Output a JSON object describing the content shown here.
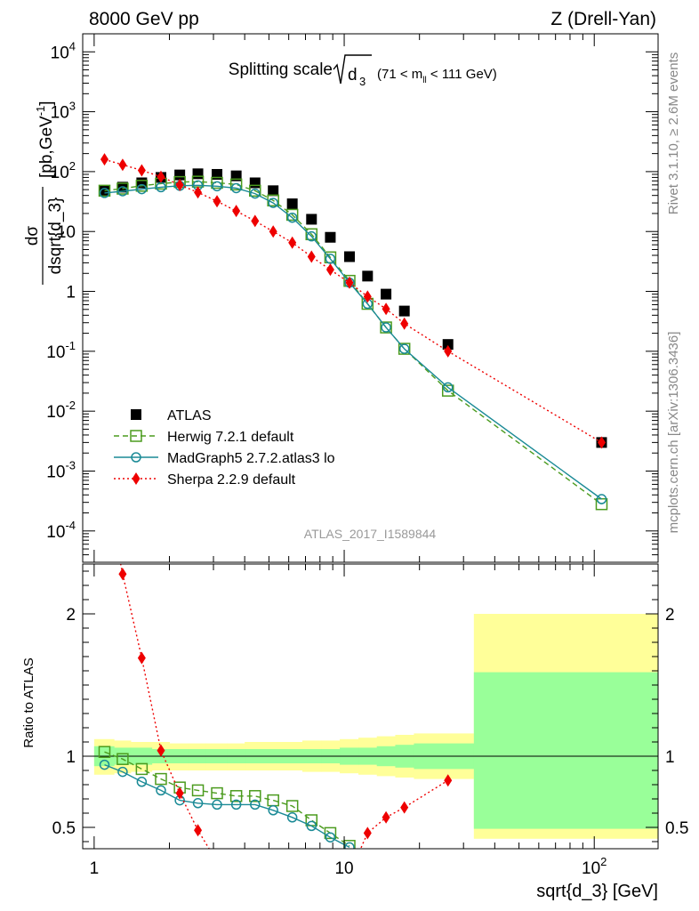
{
  "header": {
    "left": "8000 GeV pp",
    "right": "Z (Drell-Yan)"
  },
  "side_labels": {
    "rivet": "Rivet 3.1.10, ≥ 2.6M events",
    "mcplots": "mcplots.cern.ch [arXiv:1306.3436]"
  },
  "watermark": "ATLAS_2017_I1589844",
  "chart_data": [
    {
      "type": "scatter",
      "panel": "main",
      "title": "Splitting scale √d₃ (71 < m_ll < 111 GeV)",
      "title_main": "Splitting scale",
      "title_var": "d",
      "title_sub": "3",
      "title_cut": "(71 < m",
      "title_cut_sub": "ll",
      "title_cut_end": " < 111 GeV)",
      "ylabel": "dσ/dsqrt{d_3} [pb,GeV⁻¹]",
      "ylabel_num": "dσ",
      "ylabel_den": "dsqrt{d_3}",
      "ylabel_unit": "[pb,GeV",
      "ylabel_unit_sup": "-1",
      "ylabel_unit_end": "]",
      "xscale": "log",
      "yscale": "log",
      "xlim": [
        0.9,
        180
      ],
      "ylim": [
        3e-05,
        20000
      ],
      "yticks": [
        {
          "v": 0.0001,
          "base": "10",
          "exp": "-4"
        },
        {
          "v": 0.001,
          "base": "10",
          "exp": "-3"
        },
        {
          "v": 0.01,
          "base": "10",
          "exp": "-2"
        },
        {
          "v": 0.1,
          "base": "10",
          "exp": "-1"
        },
        {
          "v": 1,
          "base": "1",
          "exp": ""
        },
        {
          "v": 10,
          "base": "10",
          "exp": ""
        },
        {
          "v": 100,
          "base": "10",
          "exp": "2"
        },
        {
          "v": 1000,
          "base": "10",
          "exp": "3"
        },
        {
          "v": 10000,
          "base": "10",
          "exp": "4"
        }
      ],
      "legend_position": "lower-left",
      "series": [
        {
          "name": "ATLAS",
          "marker": "square-filled",
          "color": "#000000",
          "x": [
            1.1,
            1.3,
            1.55,
            1.85,
            2.2,
            2.6,
            3.1,
            3.7,
            4.4,
            5.2,
            6.2,
            7.4,
            8.8,
            10.5,
            12.4,
            14.7,
            17.4,
            26.0,
            107.0
          ],
          "y": [
            48,
            55,
            65,
            80,
            88,
            92,
            90,
            85,
            65,
            48,
            29,
            16,
            8,
            3.8,
            1.8,
            0.9,
            0.47,
            0.13,
            0.003
          ]
        },
        {
          "name": "Herwig 7.2.1 default",
          "marker": "square-open",
          "line": "dashed",
          "color": "#4b9b1e",
          "x": [
            1.1,
            1.3,
            1.55,
            1.85,
            2.2,
            2.6,
            3.1,
            3.7,
            4.4,
            5.2,
            6.2,
            7.4,
            8.8,
            10.5,
            12.4,
            14.7,
            17.4,
            26.0,
            107.0
          ],
          "y": [
            48,
            52,
            58,
            63,
            67,
            68,
            65,
            61,
            48,
            33,
            19,
            9,
            3.7,
            1.5,
            0.62,
            0.25,
            0.11,
            0.022,
            0.00028
          ]
        },
        {
          "name": "MadGraph5 2.7.2.atlas3 lo",
          "marker": "circle-open",
          "line": "solid",
          "color": "#1a8a96",
          "x": [
            1.1,
            1.3,
            1.55,
            1.85,
            2.2,
            2.6,
            3.1,
            3.7,
            4.4,
            5.2,
            6.2,
            7.4,
            8.8,
            10.5,
            12.4,
            14.7,
            17.4,
            26.0,
            107.0
          ],
          "y": [
            44,
            47,
            51,
            55,
            58,
            59,
            57,
            53,
            43,
            30,
            17,
            8.3,
            3.5,
            1.4,
            0.62,
            0.25,
            0.11,
            0.025,
            0.00034
          ]
        },
        {
          "name": "Sherpa 2.2.9 default",
          "marker": "diamond-filled",
          "line": "dotted",
          "color": "#ee0000",
          "x": [
            1.1,
            1.3,
            1.55,
            1.85,
            2.2,
            2.6,
            3.1,
            3.7,
            4.4,
            5.2,
            6.2,
            7.4,
            8.8,
            10.5,
            12.4,
            14.7,
            17.4,
            26.0,
            107.0
          ],
          "y": [
            160,
            130,
            105,
            82,
            60,
            45,
            32,
            22,
            15,
            10,
            6.5,
            3.8,
            2.3,
            1.4,
            0.82,
            0.51,
            0.29,
            0.1,
            0.003
          ]
        }
      ]
    },
    {
      "type": "scatter",
      "panel": "ratio",
      "xlabel": "sqrt{d_3} [GeV]",
      "ylabel": "Ratio to ATLAS",
      "xscale": "log",
      "xlim": [
        0.9,
        180
      ],
      "ylim": [
        0.35,
        2.35
      ],
      "xticks": [
        {
          "v": 1,
          "base": "1",
          "exp": ""
        },
        {
          "v": 10,
          "base": "10",
          "exp": ""
        },
        {
          "v": 100,
          "base": "10",
          "exp": "2"
        }
      ],
      "yticks": [
        {
          "v": 0.5,
          "label": "0.5"
        },
        {
          "v": 1,
          "label": "1"
        },
        {
          "v": 2,
          "label": "2"
        }
      ],
      "bands": {
        "edges": [
          1.0,
          1.2,
          1.4,
          1.7,
          2.0,
          2.4,
          2.8,
          3.4,
          4.0,
          4.8,
          5.7,
          6.8,
          8.1,
          9.6,
          11.4,
          13.5,
          16.0,
          19.0,
          33.0,
          180.0
        ],
        "inner_lo": [
          0.93,
          0.94,
          0.94,
          0.95,
          0.95,
          0.95,
          0.95,
          0.95,
          0.95,
          0.95,
          0.95,
          0.95,
          0.95,
          0.94,
          0.94,
          0.93,
          0.92,
          0.91,
          0.49
        ],
        "inner_hi": [
          1.07,
          1.06,
          1.06,
          1.05,
          1.05,
          1.05,
          1.05,
          1.05,
          1.05,
          1.05,
          1.05,
          1.05,
          1.05,
          1.06,
          1.06,
          1.07,
          1.08,
          1.09,
          1.59
        ],
        "outer_lo": [
          0.87,
          0.88,
          0.89,
          0.9,
          0.9,
          0.9,
          0.9,
          0.9,
          0.9,
          0.9,
          0.9,
          0.89,
          0.89,
          0.88,
          0.87,
          0.86,
          0.85,
          0.84,
          0.42
        ],
        "outer_hi": [
          1.12,
          1.11,
          1.1,
          1.1,
          1.09,
          1.09,
          1.09,
          1.09,
          1.1,
          1.1,
          1.1,
          1.11,
          1.11,
          1.12,
          1.13,
          1.14,
          1.15,
          1.16,
          2.0
        ],
        "inner_color": "#99ff99",
        "outer_color": "#ffff99"
      },
      "series": [
        {
          "name": "Herwig 7.2.1 default",
          "color": "#4b9b1e",
          "marker": "square-open",
          "line": "dashed",
          "x": [
            1.1,
            1.3,
            1.55,
            1.85,
            2.2,
            2.6,
            3.1,
            3.7,
            4.4,
            5.2,
            6.2,
            7.4,
            8.8,
            10.5
          ],
          "y": [
            1.03,
            0.98,
            0.91,
            0.84,
            0.78,
            0.76,
            0.74,
            0.72,
            0.72,
            0.69,
            0.65,
            0.55,
            0.46,
            0.37
          ]
        },
        {
          "name": "MadGraph5 2.7.2.atlas3 lo",
          "color": "#1a8a96",
          "marker": "circle-open",
          "line": "solid",
          "x": [
            1.1,
            1.3,
            1.55,
            1.85,
            2.2,
            2.6,
            3.1,
            3.7,
            4.4,
            5.2,
            6.2,
            7.4,
            8.8,
            10.5
          ],
          "y": [
            0.94,
            0.89,
            0.82,
            0.76,
            0.69,
            0.67,
            0.66,
            0.66,
            0.66,
            0.62,
            0.57,
            0.51,
            0.43,
            0.36
          ]
        },
        {
          "name": "Sherpa 2.2.9 default",
          "color": "#ee0000",
          "marker": "diamond-filled",
          "line": "dotted",
          "x": [
            1.3,
            1.55,
            1.85,
            2.2,
            2.6,
            12.4,
            14.7,
            17.4,
            26.0
          ],
          "y": [
            2.28,
            1.69,
            1.04,
            0.74,
            0.48,
            0.46,
            0.57,
            0.64,
            0.83
          ],
          "tail": [
            {
              "x1": 2.6,
              "y1": 0.48,
              "x2": 3.0,
              "y2": 0.3
            },
            {
              "x1": 11.3,
              "y1": 0.3,
              "x2": 12.4,
              "y2": 0.46
            }
          ]
        }
      ]
    }
  ]
}
